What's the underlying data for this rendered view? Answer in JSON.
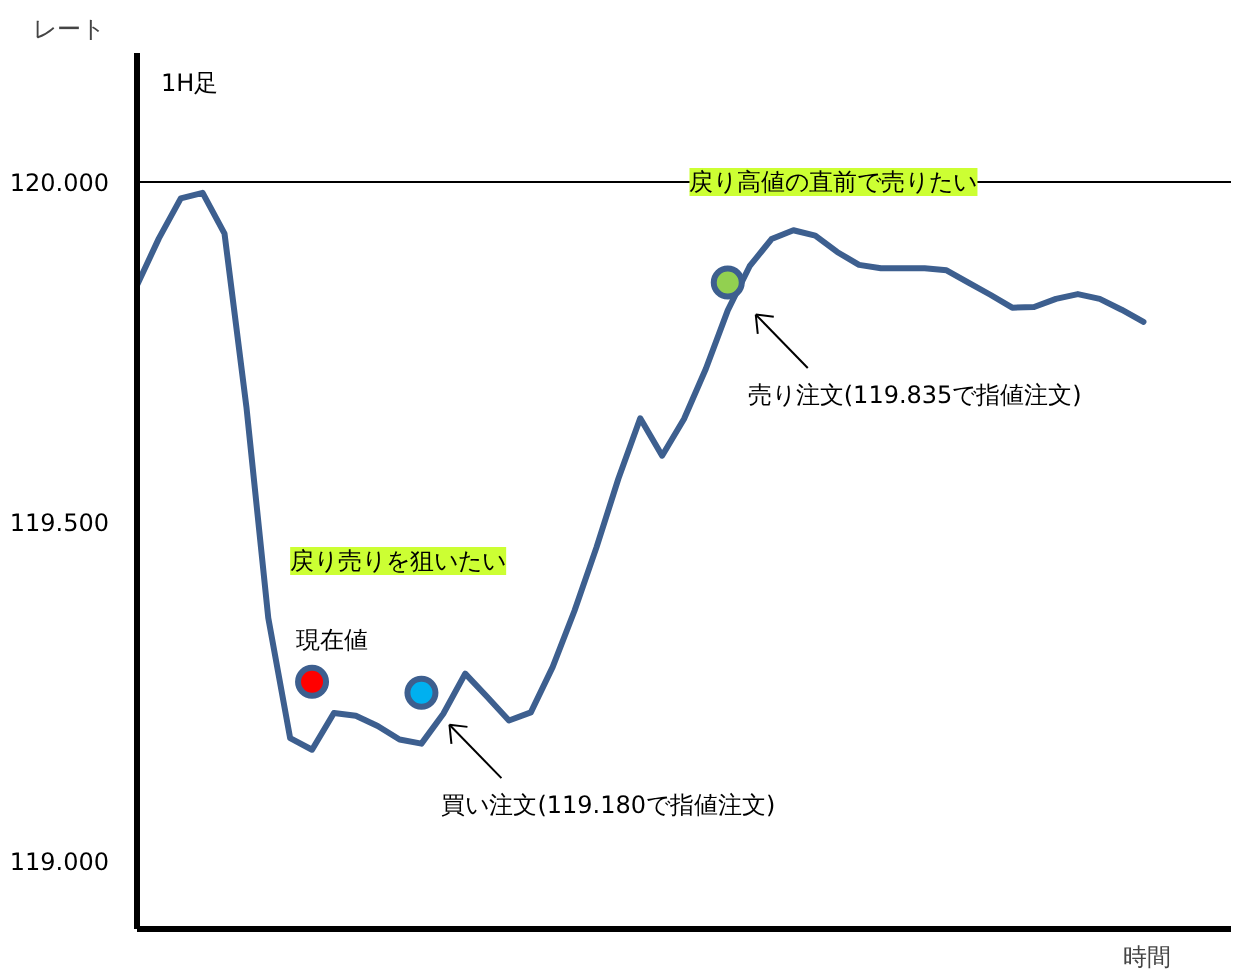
{
  "chart_data": {
    "type": "line",
    "title": "1H足",
    "ylabel": "レート",
    "xlabel": "時間",
    "categories": [
      null,
      null,
      null,
      null,
      null,
      null,
      null,
      null,
      null,
      null,
      null,
      null,
      null,
      null,
      null,
      null,
      null,
      null,
      null,
      null,
      null,
      null,
      null,
      null,
      null,
      null,
      null,
      null,
      null,
      null,
      null,
      null,
      null,
      null,
      null,
      null,
      null,
      null,
      null,
      null,
      null,
      null,
      null,
      null,
      null,
      null,
      null
    ],
    "ylim": [
      118.9,
      120.19
    ],
    "yticks": [
      {
        "value": 119.0,
        "label": "119.000"
      },
      {
        "value": 119.5,
        "label": "119.500"
      },
      {
        "value": 120.0,
        "label": "120.000"
      }
    ],
    "tick_labels": "y",
    "series": [
      {
        "color": "#3d5f8f",
        "marker": "none",
        "values": [
          119.848,
          119.917,
          119.976,
          119.984,
          119.924,
          119.669,
          119.358,
          119.181,
          119.164,
          119.218,
          119.214,
          119.199,
          119.179,
          119.173,
          119.217,
          119.276,
          119.242,
          119.207,
          119.219,
          119.286,
          119.369,
          119.462,
          119.563,
          119.652,
          119.597,
          119.651,
          119.725,
          119.811,
          119.876,
          119.916,
          119.929,
          119.921,
          119.897,
          119.878,
          119.873,
          119.873,
          119.873,
          119.87,
          119.852,
          119.834,
          119.815,
          119.816,
          119.828,
          119.835,
          119.828,
          119.812,
          119.794
        ]
      },
      {
        "type": "scatter",
        "color": "#ff0000",
        "values": [
          null,
          null,
          null,
          null,
          null,
          null,
          null,
          null,
          119.264,
          null,
          null,
          null,
          null,
          null,
          null,
          null,
          null,
          null,
          null,
          null,
          null,
          null,
          null,
          null,
          null,
          null,
          null,
          null,
          null,
          null,
          null,
          null,
          null,
          null,
          null,
          null,
          null,
          null,
          null,
          null,
          null,
          null,
          null,
          null,
          null,
          null,
          null
        ]
      },
      {
        "type": "scatter",
        "color": "#00b0f0",
        "values": [
          null,
          null,
          null,
          null,
          null,
          null,
          null,
          null,
          null,
          null,
          null,
          null,
          null,
          119.248,
          null,
          null,
          null,
          null,
          null,
          null,
          null,
          null,
          null,
          null,
          null,
          null,
          null,
          null,
          null,
          null,
          null,
          null,
          null,
          null,
          null,
          null,
          null,
          null,
          null,
          null,
          null,
          null,
          null,
          null,
          null,
          null,
          null
        ]
      },
      {
        "type": "scatter",
        "color": "#92d050",
        "values": [
          null,
          null,
          null,
          null,
          null,
          null,
          null,
          null,
          null,
          null,
          null,
          null,
          null,
          null,
          null,
          null,
          null,
          null,
          null,
          null,
          null,
          null,
          null,
          null,
          null,
          null,
          null,
          119.852,
          null,
          null,
          null,
          null,
          null,
          null,
          null,
          null,
          null,
          null,
          null,
          null,
          null,
          null,
          null,
          null,
          null,
          null,
          null
        ]
      }
    ],
    "marker": "circle",
    "line_style": "solid",
    "grid": false,
    "ref_lines": [
      {
        "axis": "y",
        "value": 120.0,
        "label": "戻り高値の直前で売りたい",
        "color": "#000000"
      }
    ],
    "annotations": [
      "戻り売りを狙いたい",
      "現在値",
      "買い注文(119.180で指値注文)",
      "売り注文(119.835で指値注文)"
    ]
  }
}
